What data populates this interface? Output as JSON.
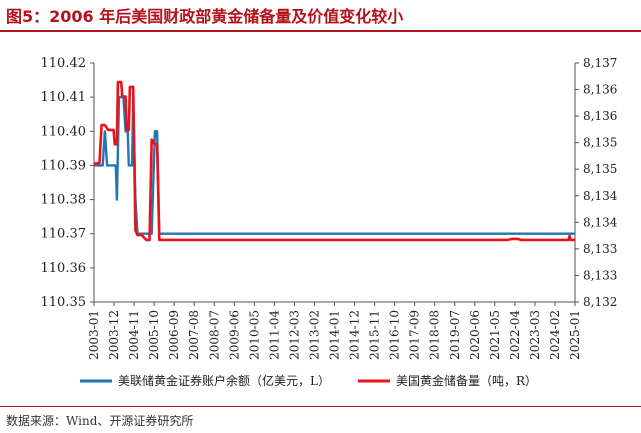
{
  "title": "图5：2006 年后美国财政部黄金储备量及价值变化较小",
  "source": "数据来源：Wind、开源证券研究所",
  "colors": {
    "left": "#1f77b4",
    "right": "#e8141c",
    "title": "#b3121a"
  },
  "chart_data": {
    "type": "line",
    "x_tick_labels": [
      "2003-01",
      "2003-12",
      "2004-11",
      "2005-10",
      "2006-09",
      "2007-08",
      "2008-07",
      "2009-06",
      "2010-05",
      "2011-04",
      "2012-03",
      "2013-02",
      "2014-01",
      "2014-12",
      "2015-11",
      "2016-10",
      "2017-09",
      "2018-08",
      "2019-07",
      "2020-06",
      "2021-05",
      "2022-04",
      "2023-03",
      "2024-02",
      "2025-01"
    ],
    "y_left": {
      "ylim": [
        110.35,
        110.42
      ],
      "ticks": [
        "110.35",
        "110.36",
        "110.37",
        "110.38",
        "110.39",
        "110.40",
        "110.41",
        "110.42"
      ]
    },
    "y_right": {
      "ylim": [
        8132.0,
        8137.0
      ],
      "ticks": [
        "8,132",
        "8,133",
        "8,133",
        "8,134",
        "8,134",
        "8,135",
        "8,135",
        "8,136",
        "8,136",
        "8,137"
      ]
    },
    "series": [
      {
        "name": "美联储黄金证券账户余额（亿美元，L）",
        "axis": "left",
        "points": [
          [
            2003.0,
            110.39
          ],
          [
            2003.4,
            110.39
          ],
          [
            2003.5,
            110.4
          ],
          [
            2003.6,
            110.39
          ],
          [
            2004.0,
            110.39
          ],
          [
            2004.05,
            110.38
          ],
          [
            2004.15,
            110.41
          ],
          [
            2004.35,
            110.41
          ],
          [
            2004.45,
            110.4
          ],
          [
            2004.55,
            110.4
          ],
          [
            2004.6,
            110.39
          ],
          [
            2004.75,
            110.39
          ],
          [
            2004.8,
            110.41
          ],
          [
            2004.9,
            110.38
          ],
          [
            2005.0,
            110.37
          ],
          [
            2005.65,
            110.37
          ],
          [
            2005.8,
            110.4
          ],
          [
            2005.9,
            110.4
          ],
          [
            2006.0,
            110.37
          ],
          [
            2025.1,
            110.37
          ]
        ]
      },
      {
        "name": "美国黄金储备量（吨，R）",
        "axis": "right",
        "points": [
          [
            2003.0,
            8134.9
          ],
          [
            2003.25,
            8134.9
          ],
          [
            2003.35,
            8135.7
          ],
          [
            2003.5,
            8135.7
          ],
          [
            2003.65,
            8135.6
          ],
          [
            2003.9,
            8135.6
          ],
          [
            2003.95,
            8135.3
          ],
          [
            2004.05,
            8135.3
          ],
          [
            2004.1,
            8136.6
          ],
          [
            2004.25,
            8136.6
          ],
          [
            2004.3,
            8136.3
          ],
          [
            2004.45,
            8136.3
          ],
          [
            2004.5,
            8135.6
          ],
          [
            2004.6,
            8135.6
          ],
          [
            2004.65,
            8136.5
          ],
          [
            2004.8,
            8136.5
          ],
          [
            2004.9,
            8133.5
          ],
          [
            2005.0,
            8133.4
          ],
          [
            2005.2,
            8133.4
          ],
          [
            2005.4,
            8133.3
          ],
          [
            2005.55,
            8133.3
          ],
          [
            2005.65,
            8135.4
          ],
          [
            2005.8,
            8135.3
          ],
          [
            2005.9,
            8135.3
          ],
          [
            2006.0,
            8133.3
          ],
          [
            2022.0,
            8133.3
          ],
          [
            2022.2,
            8133.32
          ],
          [
            2022.5,
            8133.32
          ],
          [
            2022.6,
            8133.3
          ],
          [
            2024.8,
            8133.3
          ],
          [
            2024.85,
            8133.38
          ],
          [
            2024.9,
            8133.3
          ],
          [
            2025.1,
            8133.3
          ]
        ]
      }
    ]
  }
}
